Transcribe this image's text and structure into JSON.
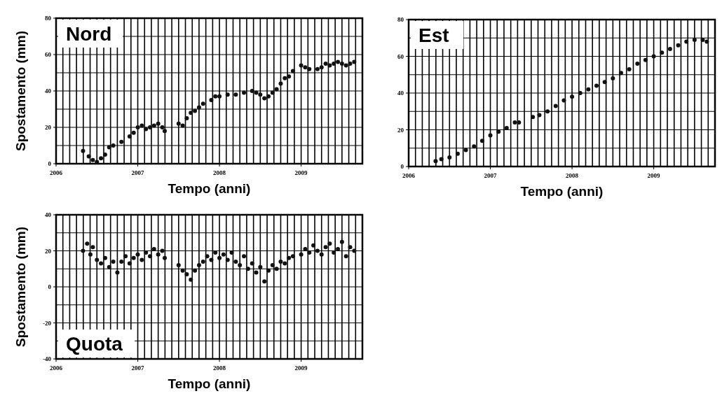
{
  "chart_data": [
    {
      "type": "scatter",
      "title": "Nord",
      "xlabel": "Tempo (anni)",
      "ylabel": "Spostamento (mm)",
      "marker": "circle",
      "grid": true,
      "xlim": [
        2006,
        2009.75
      ],
      "ylim": [
        0,
        80
      ],
      "xticks": [
        2006,
        {
          "value": 2006.0833,
          "label": null
        },
        {
          "value": 2006.1667,
          "label": null
        },
        {
          "value": 2006.25,
          "label": null
        },
        {
          "value": 2006.3333,
          "label": null
        },
        {
          "value": 2006.4167,
          "label": null
        },
        {
          "value": 2006.5,
          "label": null
        },
        {
          "value": 2006.5833,
          "label": null
        },
        {
          "value": 2006.6667,
          "label": null
        },
        {
          "value": 2006.75,
          "label": null
        },
        {
          "value": 2006.8333,
          "label": null
        },
        {
          "value": 2006.9167,
          "label": null
        },
        2007,
        {
          "value": 2007.0833,
          "label": null
        },
        {
          "value": 2007.1667,
          "label": null
        },
        {
          "value": 2007.25,
          "label": null
        },
        {
          "value": 2007.3333,
          "label": null
        },
        {
          "value": 2007.4167,
          "label": null
        },
        {
          "value": 2007.5,
          "label": null
        },
        {
          "value": 2007.5833,
          "label": null
        },
        {
          "value": 2007.6667,
          "label": null
        },
        {
          "value": 2007.75,
          "label": null
        },
        {
          "value": 2007.8333,
          "label": null
        },
        {
          "value": 2007.9167,
          "label": null
        },
        2008,
        {
          "value": 2008.0833,
          "label": null
        },
        {
          "value": 2008.1667,
          "label": null
        },
        {
          "value": 2008.25,
          "label": null
        },
        {
          "value": 2008.3333,
          "label": null
        },
        {
          "value": 2008.4167,
          "label": null
        },
        {
          "value": 2008.5,
          "label": null
        },
        {
          "value": 2008.5833,
          "label": null
        },
        {
          "value": 2008.6667,
          "label": null
        },
        {
          "value": 2008.75,
          "label": null
        },
        {
          "value": 2008.8333,
          "label": null
        },
        {
          "value": 2008.9167,
          "label": null
        },
        2009,
        {
          "value": 2009.0833,
          "label": null
        },
        {
          "value": 2009.1667,
          "label": null
        },
        {
          "value": 2009.25,
          "label": null
        },
        {
          "value": 2009.3333,
          "label": null
        },
        {
          "value": 2009.4167,
          "label": null
        },
        {
          "value": 2009.5,
          "label": null
        },
        {
          "value": 2009.5833,
          "label": null
        },
        {
          "value": 2009.6667,
          "label": null
        }
      ],
      "yticks": [
        0,
        {
          "value": 10,
          "label": null
        },
        20,
        {
          "value": 30,
          "label": null
        },
        40,
        {
          "value": 50,
          "label": null
        },
        60,
        {
          "value": 70,
          "label": null
        },
        80
      ],
      "series": [
        {
          "color": "#111111",
          "x": [
            2006.33,
            2006.4,
            2006.45,
            2006.5,
            2006.55,
            2006.6,
            2006.65,
            2006.7,
            2006.8,
            2006.9,
            2006.95,
            2007.0,
            2007.05,
            2007.1,
            2007.15,
            2007.2,
            2007.25,
            2007.3,
            2007.33,
            2007.5,
            2007.55,
            2007.6,
            2007.65,
            2007.7,
            2007.75,
            2007.8,
            2007.9,
            2007.95,
            2008.0,
            2008.1,
            2008.2,
            2008.3,
            2008.4,
            2008.45,
            2008.5,
            2008.55,
            2008.6,
            2008.65,
            2008.7,
            2008.75,
            2008.8,
            2008.85,
            2008.9,
            2009.0,
            2009.05,
            2009.1,
            2009.2,
            2009.25,
            2009.3,
            2009.35,
            2009.4,
            2009.45,
            2009.5,
            2009.55,
            2009.6,
            2009.65
          ],
          "values": [
            7,
            4,
            2,
            1,
            3,
            5,
            9,
            10,
            12,
            15,
            17,
            20,
            21,
            19,
            20,
            21,
            22,
            20,
            18,
            22,
            21,
            25,
            28,
            29,
            31,
            33,
            35,
            37,
            37,
            38,
            38,
            39,
            40,
            39,
            38,
            36,
            37,
            39,
            41,
            44,
            47,
            48,
            51,
            54,
            53,
            52,
            52,
            53,
            55,
            54,
            55,
            56,
            55,
            54,
            55,
            56
          ]
        }
      ]
    },
    {
      "type": "scatter",
      "title": "Est",
      "xlabel": "Tempo (anni)",
      "marker": "circle",
      "grid": true,
      "xlim": [
        2006,
        2009.75
      ],
      "ylim": [
        0,
        80
      ],
      "xticks": [
        2006,
        {
          "value": 2006.0833,
          "label": null
        },
        {
          "value": 2006.1667,
          "label": null
        },
        {
          "value": 2006.25,
          "label": null
        },
        {
          "value": 2006.3333,
          "label": null
        },
        {
          "value": 2006.4167,
          "label": null
        },
        {
          "value": 2006.5,
          "label": null
        },
        {
          "value": 2006.5833,
          "label": null
        },
        {
          "value": 2006.6667,
          "label": null
        },
        {
          "value": 2006.75,
          "label": null
        },
        {
          "value": 2006.8333,
          "label": null
        },
        {
          "value": 2006.9167,
          "label": null
        },
        2007,
        {
          "value": 2007.0833,
          "label": null
        },
        {
          "value": 2007.1667,
          "label": null
        },
        {
          "value": 2007.25,
          "label": null
        },
        {
          "value": 2007.3333,
          "label": null
        },
        {
          "value": 2007.4167,
          "label": null
        },
        {
          "value": 2007.5,
          "label": null
        },
        {
          "value": 2007.5833,
          "label": null
        },
        {
          "value": 2007.6667,
          "label": null
        },
        {
          "value": 2007.75,
          "label": null
        },
        {
          "value": 2007.8333,
          "label": null
        },
        {
          "value": 2007.9167,
          "label": null
        },
        2008,
        {
          "value": 2008.0833,
          "label": null
        },
        {
          "value": 2008.1667,
          "label": null
        },
        {
          "value": 2008.25,
          "label": null
        },
        {
          "value": 2008.3333,
          "label": null
        },
        {
          "value": 2008.4167,
          "label": null
        },
        {
          "value": 2008.5,
          "label": null
        },
        {
          "value": 2008.5833,
          "label": null
        },
        {
          "value": 2008.6667,
          "label": null
        },
        {
          "value": 2008.75,
          "label": null
        },
        {
          "value": 2008.8333,
          "label": null
        },
        {
          "value": 2008.9167,
          "label": null
        },
        2009,
        {
          "value": 2009.0833,
          "label": null
        },
        {
          "value": 2009.1667,
          "label": null
        },
        {
          "value": 2009.25,
          "label": null
        },
        {
          "value": 2009.3333,
          "label": null
        },
        {
          "value": 2009.4167,
          "label": null
        },
        {
          "value": 2009.5,
          "label": null
        },
        {
          "value": 2009.5833,
          "label": null
        },
        {
          "value": 2009.6667,
          "label": null
        }
      ],
      "yticks": [
        0,
        {
          "value": 10,
          "label": null
        },
        20,
        {
          "value": 30,
          "label": null
        },
        40,
        {
          "value": 50,
          "label": null
        },
        60,
        {
          "value": 70,
          "label": null
        },
        80
      ],
      "series": [
        {
          "color": "#111111",
          "x": [
            2006.33,
            2006.4,
            2006.5,
            2006.6,
            2006.7,
            2006.8,
            2006.9,
            2007.0,
            2007.1,
            2007.2,
            2007.3,
            2007.35,
            2007.52,
            2007.6,
            2007.7,
            2007.8,
            2007.9,
            2008.0,
            2008.1,
            2008.2,
            2008.3,
            2008.4,
            2008.5,
            2008.6,
            2008.7,
            2008.8,
            2008.9,
            2009.0,
            2009.1,
            2009.2,
            2009.3,
            2009.4,
            2009.5,
            2009.6,
            2009.65
          ],
          "values": [
            3,
            4,
            5,
            7,
            9,
            11,
            14,
            17,
            19,
            21,
            24,
            24,
            27,
            28,
            30,
            33,
            36,
            38,
            40,
            42,
            44,
            46,
            48,
            51,
            53,
            56,
            58,
            60,
            62,
            64,
            66,
            68,
            69,
            69,
            68
          ]
        }
      ]
    },
    {
      "type": "scatter",
      "title": "Quota",
      "xlabel": "Tempo (anni)",
      "ylabel": "Spostamento (mm)",
      "marker": "circle",
      "grid": true,
      "xlim": [
        2006,
        2009.75
      ],
      "ylim": [
        -40,
        40
      ],
      "xticks": [
        2006,
        {
          "value": 2006.0833,
          "label": null
        },
        {
          "value": 2006.1667,
          "label": null
        },
        {
          "value": 2006.25,
          "label": null
        },
        {
          "value": 2006.3333,
          "label": null
        },
        {
          "value": 2006.4167,
          "label": null
        },
        {
          "value": 2006.5,
          "label": null
        },
        {
          "value": 2006.5833,
          "label": null
        },
        {
          "value": 2006.6667,
          "label": null
        },
        {
          "value": 2006.75,
          "label": null
        },
        {
          "value": 2006.8333,
          "label": null
        },
        {
          "value": 2006.9167,
          "label": null
        },
        2007,
        {
          "value": 2007.0833,
          "label": null
        },
        {
          "value": 2007.1667,
          "label": null
        },
        {
          "value": 2007.25,
          "label": null
        },
        {
          "value": 2007.3333,
          "label": null
        },
        {
          "value": 2007.4167,
          "label": null
        },
        {
          "value": 2007.5,
          "label": null
        },
        {
          "value": 2007.5833,
          "label": null
        },
        {
          "value": 2007.6667,
          "label": null
        },
        {
          "value": 2007.75,
          "label": null
        },
        {
          "value": 2007.8333,
          "label": null
        },
        {
          "value": 2007.9167,
          "label": null
        },
        2008,
        {
          "value": 2008.0833,
          "label": null
        },
        {
          "value": 2008.1667,
          "label": null
        },
        {
          "value": 2008.25,
          "label": null
        },
        {
          "value": 2008.3333,
          "label": null
        },
        {
          "value": 2008.4167,
          "label": null
        },
        {
          "value": 2008.5,
          "label": null
        },
        {
          "value": 2008.5833,
          "label": null
        },
        {
          "value": 2008.6667,
          "label": null
        },
        {
          "value": 2008.75,
          "label": null
        },
        {
          "value": 2008.8333,
          "label": null
        },
        {
          "value": 2008.9167,
          "label": null
        },
        2009,
        {
          "value": 2009.0833,
          "label": null
        },
        {
          "value": 2009.1667,
          "label": null
        },
        {
          "value": 2009.25,
          "label": null
        },
        {
          "value": 2009.3333,
          "label": null
        },
        {
          "value": 2009.4167,
          "label": null
        },
        {
          "value": 2009.5,
          "label": null
        },
        {
          "value": 2009.5833,
          "label": null
        },
        {
          "value": 2009.6667,
          "label": null
        }
      ],
      "yticks": [
        -40,
        {
          "value": -30,
          "label": null
        },
        -20,
        {
          "value": -10,
          "label": null
        },
        0,
        {
          "value": 10,
          "label": null
        },
        20,
        {
          "value": 30,
          "label": null
        },
        40
      ],
      "series": [
        {
          "color": "#111111",
          "x": [
            2006.33,
            2006.38,
            2006.42,
            2006.45,
            2006.5,
            2006.55,
            2006.6,
            2006.65,
            2006.7,
            2006.75,
            2006.8,
            2006.85,
            2006.9,
            2006.95,
            2007.0,
            2007.05,
            2007.1,
            2007.15,
            2007.2,
            2007.25,
            2007.3,
            2007.33,
            2007.5,
            2007.55,
            2007.6,
            2007.65,
            2007.7,
            2007.75,
            2007.8,
            2007.85,
            2007.9,
            2007.95,
            2008.0,
            2008.05,
            2008.1,
            2008.15,
            2008.2,
            2008.25,
            2008.3,
            2008.35,
            2008.4,
            2008.45,
            2008.5,
            2008.55,
            2008.6,
            2008.65,
            2008.7,
            2008.75,
            2008.8,
            2008.85,
            2008.9,
            2009.0,
            2009.05,
            2009.1,
            2009.15,
            2009.2,
            2009.25,
            2009.3,
            2009.35,
            2009.4,
            2009.45,
            2009.5,
            2009.55,
            2009.6,
            2009.65
          ],
          "values": [
            20,
            24,
            18,
            22,
            15,
            13,
            16,
            11,
            14,
            8,
            14,
            17,
            13,
            16,
            18,
            15,
            19,
            17,
            21,
            18,
            20,
            16,
            12,
            9,
            7,
            4,
            9,
            12,
            14,
            17,
            15,
            19,
            16,
            18,
            15,
            19,
            14,
            12,
            17,
            10,
            13,
            8,
            11,
            3,
            9,
            12,
            10,
            14,
            13,
            16,
            17,
            18,
            21,
            19,
            23,
            20,
            18,
            22,
            24,
            19,
            21,
            25,
            17,
            22,
            20
          ]
        }
      ]
    }
  ]
}
